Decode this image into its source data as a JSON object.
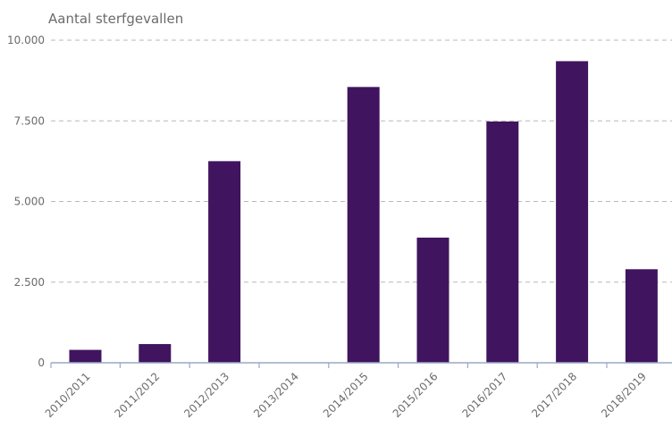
{
  "chart_data": {
    "type": "bar",
    "ylabel": "Aantal sterfgevallen",
    "categories": [
      "2010/2011",
      "2011/2012",
      "2012/2013",
      "2013/2014",
      "2014/2015",
      "2015/2016",
      "2016/2017",
      "2017/2018",
      "2018/2019"
    ],
    "values": [
      400,
      580,
      6250,
      0,
      8550,
      3880,
      7480,
      9350,
      2900
    ],
    "ylim": [
      0,
      10000
    ],
    "yticks": [
      0,
      2500,
      5000,
      7500,
      10000
    ],
    "ytick_labels": [
      "0",
      "2.500",
      "5.000",
      "7.500",
      "10.000"
    ],
    "grid": true,
    "bar_color": "#40145e"
  }
}
